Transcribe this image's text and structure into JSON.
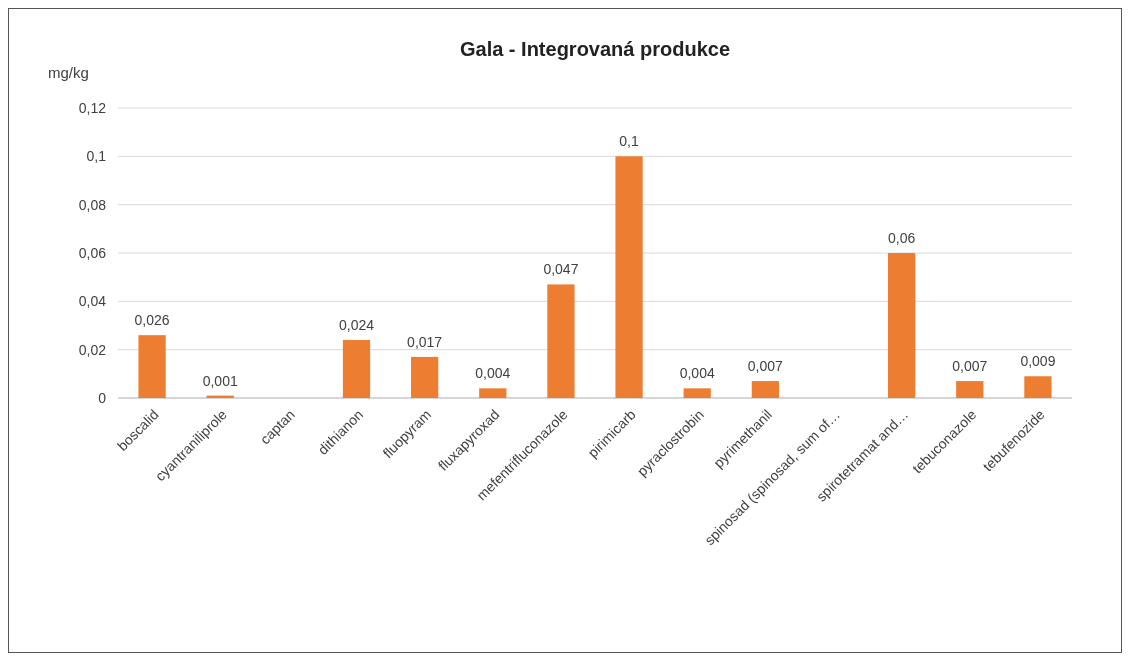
{
  "chart_data": {
    "type": "bar",
    "title": "Gala - Integrovaná produkce",
    "ylabel": "mg/kg",
    "categories": [
      "boscalid",
      "cyantraniliprole",
      "captan",
      "dithianon",
      "fluopyram",
      "fluxapyroxad",
      "mefentrifluconazole",
      "pirimicarb",
      "pyraclostrobin",
      "pyrimethanil",
      "spinosad (spinosad, sum of…",
      "spirotetramat and…",
      "tebuconazole",
      "tebufenozide"
    ],
    "values": [
      0.026,
      0.001,
      null,
      0.024,
      0.017,
      0.004,
      0.047,
      0.1,
      0.004,
      0.007,
      null,
      0.06,
      0.007,
      0.009
    ],
    "value_labels": [
      "0,026",
      "0,001",
      null,
      "0,024",
      "0,017",
      "0,004",
      "0,047",
      "0,1",
      "0,004",
      "0,007",
      null,
      "0,06",
      "0,007",
      "0,009"
    ],
    "color": "#ed7d31",
    "ylim": [
      0,
      0.12
    ],
    "yticks": [
      {
        "value": 0,
        "label": "0"
      },
      {
        "value": 0.02,
        "label": "0,02"
      },
      {
        "value": 0.04,
        "label": "0,04"
      },
      {
        "value": 0.06,
        "label": "0,06"
      },
      {
        "value": 0.08,
        "label": "0,08"
      },
      {
        "value": 0.1,
        "label": "0,1"
      },
      {
        "value": 0.12,
        "label": "0,12"
      }
    ],
    "grid": "y"
  }
}
